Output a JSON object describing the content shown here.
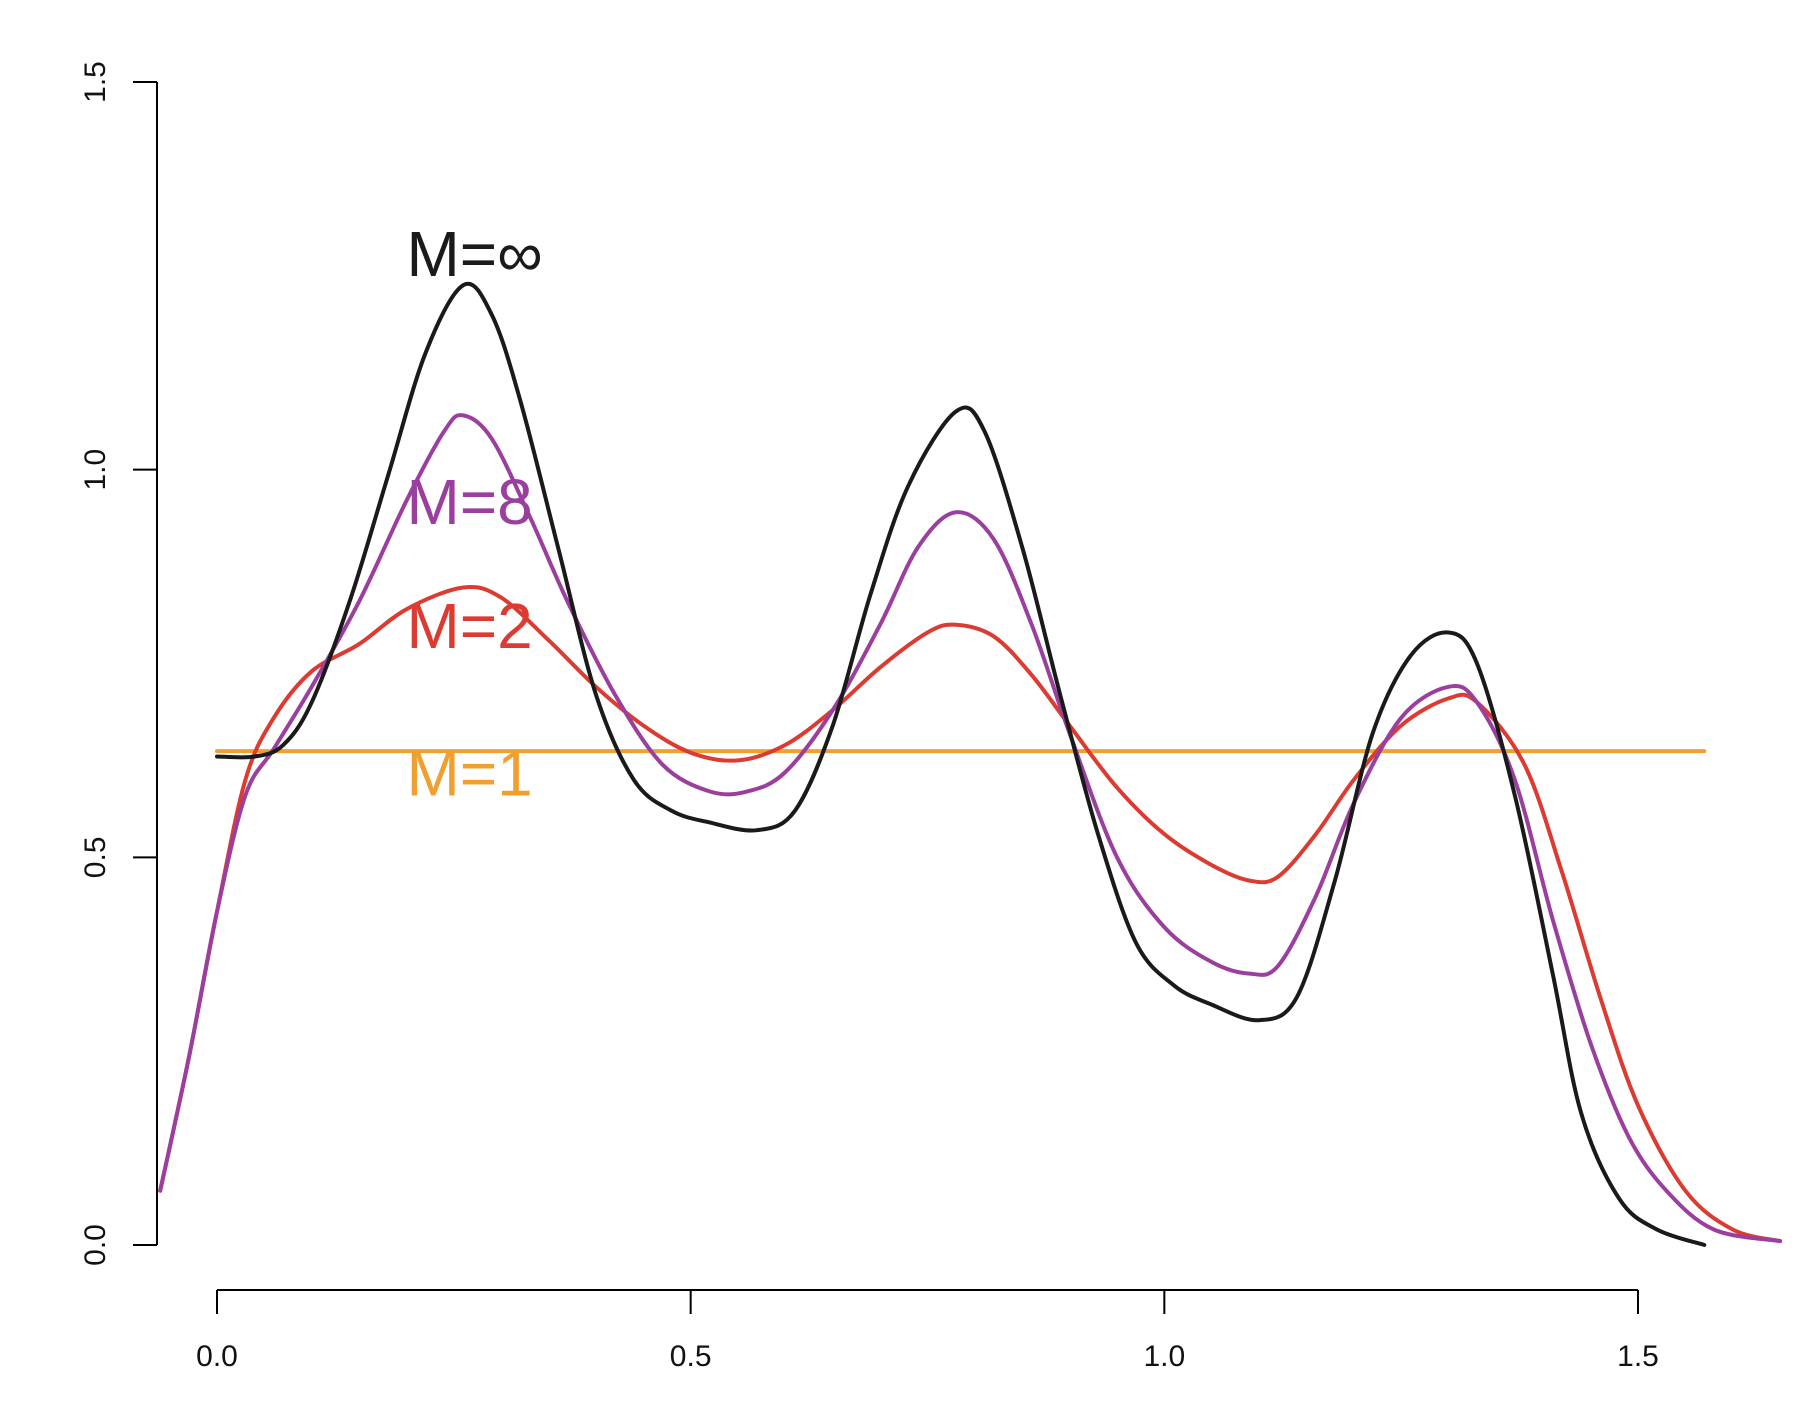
{
  "chart_data": {
    "type": "line",
    "title": "",
    "xlabel": "",
    "ylabel": "",
    "xlim": [
      0,
      1.65
    ],
    "ylim": [
      0,
      1.5
    ],
    "x_ticks": [
      {
        "value": 0.0,
        "label": "0.0"
      },
      {
        "value": 0.5,
        "label": "0.5"
      },
      {
        "value": 1.0,
        "label": "1.0"
      },
      {
        "value": 1.5,
        "label": "1.5"
      }
    ],
    "y_ticks": [
      {
        "value": 0.0,
        "label": "0.0"
      },
      {
        "value": 0.5,
        "label": "0.5"
      },
      {
        "value": 1.0,
        "label": "1.0"
      },
      {
        "value": 1.5,
        "label": "1.5"
      }
    ],
    "grid": false,
    "series": [
      {
        "name": "M=1",
        "color": "#f0a030",
        "label_at": [
          0.2,
          0.58
        ],
        "points": [
          [
            0.0,
            0.637
          ],
          [
            1.57,
            0.637
          ]
        ]
      },
      {
        "name": "M=2",
        "color": "#dc3b32",
        "label_at": [
          0.2,
          0.77
        ],
        "points": [
          [
            -0.06,
            0.07
          ],
          [
            -0.03,
            0.24
          ],
          [
            0.0,
            0.43
          ],
          [
            0.03,
            0.6
          ],
          [
            0.06,
            0.68
          ],
          [
            0.1,
            0.74
          ],
          [
            0.15,
            0.775
          ],
          [
            0.2,
            0.82
          ],
          [
            0.26,
            0.848
          ],
          [
            0.3,
            0.835
          ],
          [
            0.35,
            0.78
          ],
          [
            0.4,
            0.72
          ],
          [
            0.45,
            0.67
          ],
          [
            0.5,
            0.635
          ],
          [
            0.55,
            0.625
          ],
          [
            0.6,
            0.645
          ],
          [
            0.65,
            0.69
          ],
          [
            0.7,
            0.745
          ],
          [
            0.75,
            0.79
          ],
          [
            0.78,
            0.8
          ],
          [
            0.82,
            0.785
          ],
          [
            0.86,
            0.735
          ],
          [
            0.9,
            0.67
          ],
          [
            0.95,
            0.59
          ],
          [
            1.0,
            0.53
          ],
          [
            1.05,
            0.49
          ],
          [
            1.09,
            0.47
          ],
          [
            1.12,
            0.475
          ],
          [
            1.16,
            0.53
          ],
          [
            1.2,
            0.6
          ],
          [
            1.25,
            0.67
          ],
          [
            1.3,
            0.705
          ],
          [
            1.33,
            0.7
          ],
          [
            1.38,
            0.62
          ],
          [
            1.42,
            0.48
          ],
          [
            1.46,
            0.32
          ],
          [
            1.5,
            0.18
          ],
          [
            1.55,
            0.07
          ],
          [
            1.6,
            0.02
          ],
          [
            1.65,
            0.005
          ]
        ]
      },
      {
        "name": "M=8",
        "color": "#9b3f9e",
        "label_at": [
          0.2,
          0.93
        ],
        "points": [
          [
            -0.06,
            0.07
          ],
          [
            -0.03,
            0.24
          ],
          [
            0.0,
            0.43
          ],
          [
            0.03,
            0.58
          ],
          [
            0.06,
            0.64
          ],
          [
            0.1,
            0.72
          ],
          [
            0.15,
            0.83
          ],
          [
            0.2,
            0.96
          ],
          [
            0.24,
            1.05
          ],
          [
            0.26,
            1.07
          ],
          [
            0.29,
            1.04
          ],
          [
            0.33,
            0.94
          ],
          [
            0.37,
            0.83
          ],
          [
            0.42,
            0.71
          ],
          [
            0.47,
            0.62
          ],
          [
            0.52,
            0.585
          ],
          [
            0.56,
            0.585
          ],
          [
            0.6,
            0.61
          ],
          [
            0.65,
            0.69
          ],
          [
            0.7,
            0.8
          ],
          [
            0.74,
            0.9
          ],
          [
            0.78,
            0.945
          ],
          [
            0.82,
            0.91
          ],
          [
            0.86,
            0.8
          ],
          [
            0.9,
            0.66
          ],
          [
            0.95,
            0.5
          ],
          [
            1.0,
            0.41
          ],
          [
            1.05,
            0.365
          ],
          [
            1.09,
            0.35
          ],
          [
            1.12,
            0.36
          ],
          [
            1.16,
            0.45
          ],
          [
            1.2,
            0.57
          ],
          [
            1.25,
            0.68
          ],
          [
            1.3,
            0.72
          ],
          [
            1.33,
            0.7
          ],
          [
            1.37,
            0.6
          ],
          [
            1.41,
            0.42
          ],
          [
            1.45,
            0.26
          ],
          [
            1.49,
            0.14
          ],
          [
            1.53,
            0.07
          ],
          [
            1.58,
            0.02
          ],
          [
            1.65,
            0.005
          ]
        ]
      },
      {
        "name": "M=∞",
        "color": "#1a1a1a",
        "label_at": [
          0.2,
          1.25
        ],
        "points": [
          [
            0.0,
            0.63
          ],
          [
            0.04,
            0.63
          ],
          [
            0.07,
            0.645
          ],
          [
            0.1,
            0.7
          ],
          [
            0.14,
            0.83
          ],
          [
            0.18,
            0.99
          ],
          [
            0.22,
            1.15
          ],
          [
            0.26,
            1.238
          ],
          [
            0.29,
            1.2
          ],
          [
            0.32,
            1.09
          ],
          [
            0.36,
            0.9
          ],
          [
            0.4,
            0.71
          ],
          [
            0.44,
            0.6
          ],
          [
            0.48,
            0.56
          ],
          [
            0.52,
            0.545
          ],
          [
            0.57,
            0.535
          ],
          [
            0.61,
            0.56
          ],
          [
            0.65,
            0.67
          ],
          [
            0.69,
            0.84
          ],
          [
            0.73,
            0.98
          ],
          [
            0.78,
            1.075
          ],
          [
            0.81,
            1.05
          ],
          [
            0.85,
            0.9
          ],
          [
            0.89,
            0.71
          ],
          [
            0.93,
            0.53
          ],
          [
            0.97,
            0.39
          ],
          [
            1.01,
            0.335
          ],
          [
            1.05,
            0.31
          ],
          [
            1.1,
            0.29
          ],
          [
            1.14,
            0.32
          ],
          [
            1.18,
            0.47
          ],
          [
            1.22,
            0.66
          ],
          [
            1.26,
            0.76
          ],
          [
            1.3,
            0.79
          ],
          [
            1.33,
            0.75
          ],
          [
            1.37,
            0.58
          ],
          [
            1.41,
            0.35
          ],
          [
            1.44,
            0.17
          ],
          [
            1.48,
            0.06
          ],
          [
            1.52,
            0.02
          ],
          [
            1.57,
            0.0
          ]
        ]
      }
    ]
  }
}
